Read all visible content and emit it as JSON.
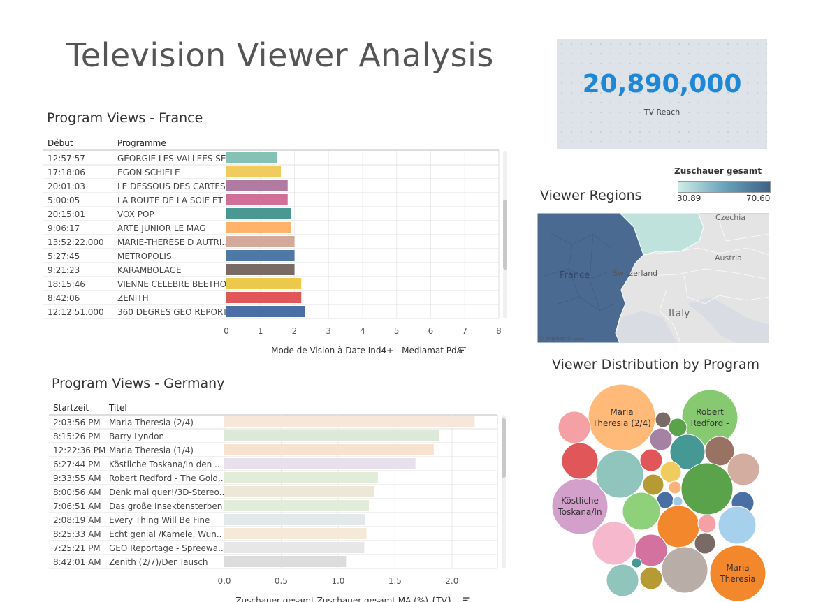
{
  "title": "Television Viewer Analysis",
  "kpi": {
    "value": "20,890,000",
    "label": "TV Reach"
  },
  "france": {
    "title": "Program Views - France",
    "col1_header": "Début",
    "col2_header": "Programme",
    "axis_title": "Mode de Vision à Date Ind4+ - Mediamat PdA",
    "ticks": [
      "0",
      "1",
      "2",
      "3",
      "4",
      "5",
      "6",
      "7",
      "8"
    ]
  },
  "germany": {
    "title": "Program Views - Germany",
    "col1_header": "Startzeit",
    "col2_header": "Titel",
    "axis_title": "Zuschauer gesamt Zuschauer gesamt MA (%) {TV}",
    "ticks": [
      "0.0",
      "0.5",
      "1.0",
      "1.5",
      "2.0"
    ]
  },
  "map": {
    "title": "Viewer Regions",
    "legend_title": "Zuschauer gesamt",
    "legend_min": "30.89",
    "legend_max": "70.60",
    "labels": [
      "France",
      "Czechia",
      "Austria",
      "Switzerland",
      "Italy"
    ],
    "credit": "© Mapbox © OSM",
    "colors": {
      "low": "#bfe3dc",
      "high": "#4a6a92"
    }
  },
  "bubbles": {
    "title": "Viewer Distribution by Program",
    "labels": [
      "Maria Theresia (2/4)",
      "Robert Redford -",
      "Köstliche Toskana/In",
      "Maria Theresia"
    ]
  },
  "chart_data": [
    {
      "type": "bar",
      "title": "Program Views - France",
      "xlabel": "Mode de Vision à Date Ind4+ - Mediamat PdA",
      "xlim": [
        0,
        8
      ],
      "rows": [
        {
          "time": "12:57:57",
          "program": "GEORGIE LES VALLEES SE..",
          "value": 1.5,
          "color": "#86c1b5"
        },
        {
          "time": "17:18:06",
          "program": "EGON SCHIELE",
          "value": 1.6,
          "color": "#f0cb5e"
        },
        {
          "time": "20:01:03",
          "program": "LE DESSOUS DES CARTES",
          "value": 1.8,
          "color": "#b07aa1"
        },
        {
          "time": "5:00:05",
          "program": "LA ROUTE DE LA SOIE ET A..",
          "value": 1.8,
          "color": "#d07098"
        },
        {
          "time": "20:15:01",
          "program": "VOX POP",
          "value": 1.9,
          "color": "#499894"
        },
        {
          "time": "9:06:17",
          "program": "ARTE JUNIOR LE MAG",
          "value": 1.9,
          "color": "#ffb26a"
        },
        {
          "time": "13:52:22.000",
          "program": "MARIE-THERESE D AUTRI..",
          "value": 2.0,
          "color": "#d4a99a"
        },
        {
          "time": "5:27:45",
          "program": "METROPOLIS",
          "value": 2.0,
          "color": "#4e79a7"
        },
        {
          "time": "9:21:23",
          "program": "KARAMBOLAGE",
          "value": 2.0,
          "color": "#7a6a66"
        },
        {
          "time": "18:15:46",
          "program": "VIENNE CELEBRE BEETHO..",
          "value": 2.2,
          "color": "#ecc94b"
        },
        {
          "time": "8:42:06",
          "program": "ZENITH",
          "value": 2.2,
          "color": "#e15759"
        },
        {
          "time": "12:12:51.000",
          "program": "360 DEGRES GEO REPORT..",
          "value": 2.3,
          "color": "#4a6fa5"
        }
      ]
    },
    {
      "type": "bar",
      "title": "Program Views - Germany",
      "xlabel": "Zuschauer gesamt Zuschauer gesamt MA (%) {TV}",
      "xlim": [
        0,
        2.4
      ],
      "rows": [
        {
          "time": "2:03:56 PM",
          "program": "Maria Theresia (2/4)",
          "value": 2.2,
          "color": "#f7e6da"
        },
        {
          "time": "8:15:26 PM",
          "program": "Barry Lyndon",
          "value": 1.89,
          "color": "#dde9d8"
        },
        {
          "time": "12:22:36 PM",
          "program": "Maria Theresia (1/4)",
          "value": 1.84,
          "color": "#f7e1cf"
        },
        {
          "time": "6:27:44 PM",
          "program": "Köstliche Toskana/In den ..",
          "value": 1.68,
          "color": "#e8e1ec"
        },
        {
          "time": "9:33:55 AM",
          "program": "Robert Redford - The Gold..",
          "value": 1.35,
          "color": "#e1ecd9"
        },
        {
          "time": "8:00:56 AM",
          "program": "Denk mal quer!/3D-Stereo..",
          "value": 1.32,
          "color": "#ede7d7"
        },
        {
          "time": "7:06:51 AM",
          "program": "Das große Insektensterben",
          "value": 1.27,
          "color": "#e1ecd9"
        },
        {
          "time": "2:08:19 AM",
          "program": "Every Thing Will Be Fine",
          "value": 1.24,
          "color": "#e3e9e8"
        },
        {
          "time": "8:25:33 AM",
          "program": "Echt genial /Kamele, Wun..",
          "value": 1.25,
          "color": "#f5ead8"
        },
        {
          "time": "7:25:21 PM",
          "program": "GEO Reportage - Spreewa..",
          "value": 1.23,
          "color": "#e7e7e7"
        },
        {
          "time": "8:42:01 AM",
          "program": "Zenith (2/7)/Der Tausch",
          "value": 1.07,
          "color": "#dcdcdc"
        }
      ]
    }
  ]
}
